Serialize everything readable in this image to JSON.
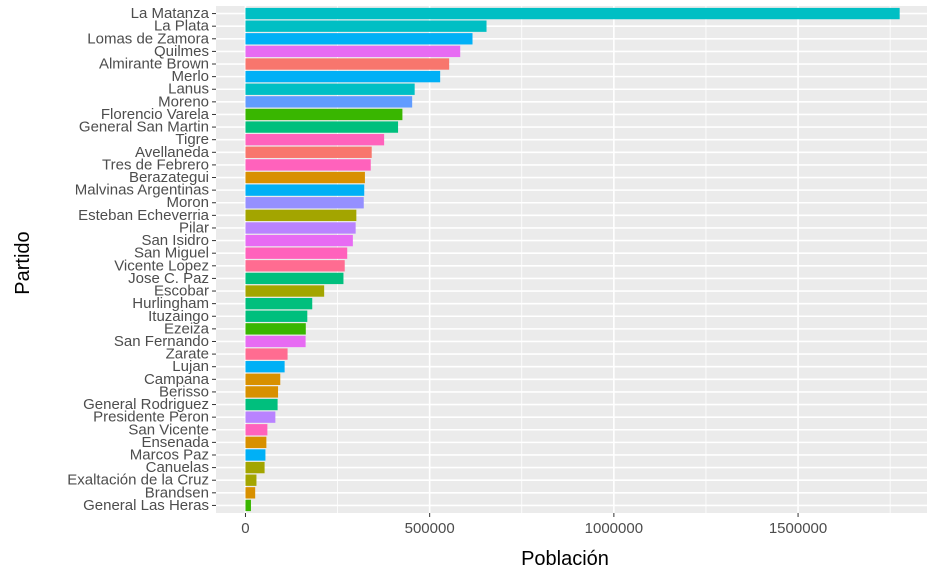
{
  "chart_data": {
    "type": "bar",
    "orientation": "horizontal",
    "xlabel": "Población",
    "ylabel": "Partido",
    "xlim": [
      -80000,
      1850000
    ],
    "x_ticks": [
      0,
      500000,
      1000000,
      1500000
    ],
    "x_tick_labels": [
      "0",
      "500000",
      "1000000",
      "1500000"
    ],
    "grid": true,
    "panel_color": "#ebebeb",
    "categories": [
      "La Matanza",
      "La Plata",
      "Lomas de Zamora",
      "Quilmes",
      "Almirante Brown",
      "Merlo",
      "Lanús",
      "Moreno",
      "Florencio Varela",
      "General San Martín",
      "Tigre",
      "Avellaneda",
      "Tres de Febrero",
      "Berazategui",
      "Malvinas Argentinas",
      "Morón",
      "Esteban Echeverría",
      "Pilar",
      "San Isidro",
      "San Miguel",
      "Vicente López",
      "José C. Paz",
      "Escobar",
      "Hurlingham",
      "Ituzaingó",
      "Ezeiza",
      "San Fernando",
      "Zárate",
      "Luján",
      "Campana",
      "Berisso",
      "General Rodríguez",
      "Presidente Perón",
      "San Vicente",
      "Ensenada",
      "Marcos Paz",
      "Cañuelas",
      "Exaltación de la Cruz",
      "Brandsen",
      "General Las Heras"
    ],
    "category_labels": [
      "La Matanza",
      "La Plata",
      "Lomas de Zamora",
      "Quilmes",
      "Almirante Brown",
      "Merlo",
      "Lanus",
      "Moreno",
      "Florencio Varela",
      "General San Martin",
      "Tigre",
      "Avellaneda",
      "Tres de Febrero",
      "Berazategui",
      "Malvinas Argentinas",
      "Moron",
      "Esteban Echeverria",
      "Pilar",
      "San Isidro",
      "San Miguel",
      "Vicente Lopez",
      "Jose C. Paz",
      "Escobar",
      "Hurlingham",
      "Ituzaingo",
      "Ezeiza",
      "San Fernando",
      "Zarate",
      "Lujan",
      "Campana",
      "Berisso",
      "General Rodriguez",
      "Presidente Peron",
      "San Vicente",
      "Ensenada",
      "Marcos Paz",
      "Canuelas",
      "Exaltación de la Cruz",
      "Brandsen",
      "General Las Heras"
    ],
    "values": [
      1775816,
      654324,
      616279,
      582943,
      552902,
      528494,
      459263,
      452505,
      426005,
      414196,
      376381,
      342677,
      340071,
      324244,
      322375,
      321109,
      300959,
      299077,
      291505,
      276190,
      269420,
      265981,
      213619,
      181241,
      167824,
      163722,
      163240,
      114269,
      106273,
      94461,
      88470,
      87185,
      81141,
      59478,
      56729,
      54181,
      51892,
      29805,
      26367,
      14889
    ],
    "colors": [
      "#00BFC4",
      "#00BFC4",
      "#00B0F6",
      "#E76BF3",
      "#F8766D",
      "#00B0F6",
      "#00BFC4",
      "#619CFF",
      "#39B600",
      "#00BF7D",
      "#FF62BC",
      "#F8766D",
      "#FF62BC",
      "#D89000",
      "#00B0F6",
      "#9590FF",
      "#A3A500",
      "#B983FF",
      "#E76BF3",
      "#FF62BC",
      "#FF6C91",
      "#00BF7D",
      "#A3A500",
      "#00BF7D",
      "#00BF7D",
      "#39B600",
      "#E76BF3",
      "#FF6C91",
      "#00B0F6",
      "#D89000",
      "#D89000",
      "#00BF7D",
      "#B983FF",
      "#FF62BC",
      "#D89000",
      "#00B0F6",
      "#A3A500",
      "#A3A500",
      "#D89000",
      "#39B600"
    ]
  }
}
